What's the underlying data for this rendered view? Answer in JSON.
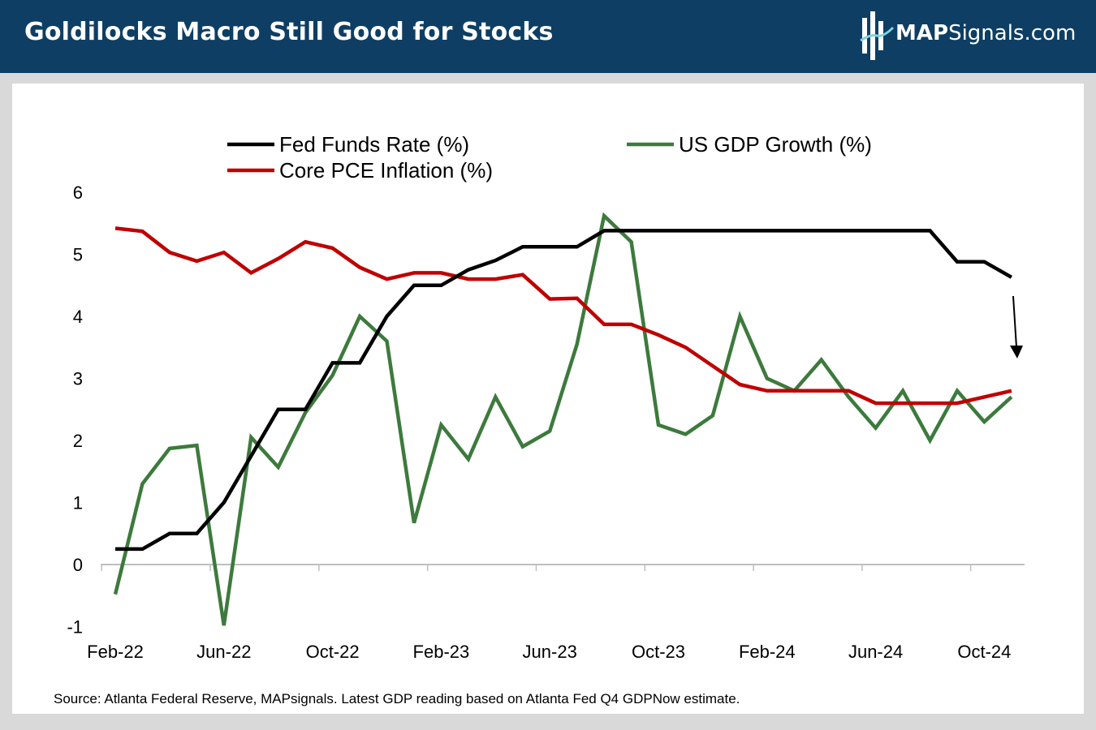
{
  "header": {
    "title": "Goldilocks Macro Still Good for Stocks",
    "logo_bold": "MAP",
    "logo_rest": "Signals.com",
    "colors": {
      "background": "#0e3e63",
      "text": "#ffffff"
    }
  },
  "footer": {
    "source": "Source: Atlanta Federal Reserve, MAPsignals. Latest GDP reading based on Atlanta Fed Q4 GDPNow estimate."
  },
  "chart_data": {
    "type": "line",
    "title": "",
    "xlabel": "",
    "ylabel": "",
    "ylim": [
      -1,
      6
    ],
    "yticks": [
      "-1",
      "0",
      "1",
      "2",
      "3",
      "4",
      "5",
      "6"
    ],
    "x": [
      "Feb-22",
      "Mar-22",
      "Apr-22",
      "May-22",
      "Jun-22",
      "Jul-22",
      "Aug-22",
      "Sep-22",
      "Oct-22",
      "Nov-22",
      "Dec-22",
      "Jan-23",
      "Feb-23",
      "Mar-23",
      "Apr-23",
      "May-23",
      "Jun-23",
      "Jul-23",
      "Aug-23",
      "Sep-23",
      "Oct-23",
      "Nov-23",
      "Dec-23",
      "Jan-24",
      "Feb-24",
      "Mar-24",
      "Apr-24",
      "May-24",
      "Jun-24",
      "Jul-24",
      "Aug-24",
      "Sep-24",
      "Oct-24",
      "Nov-24"
    ],
    "xtick_labels": [
      "Feb-22",
      "Jun-22",
      "Oct-22",
      "Feb-23",
      "Jun-23",
      "Oct-23",
      "Feb-24",
      "Jun-24",
      "Oct-24"
    ],
    "legend_position": "top",
    "series": [
      {
        "name": "Fed Funds Rate (%)",
        "color": "#000000",
        "values": [
          0.25,
          0.25,
          0.5,
          0.5,
          1.0,
          1.75,
          2.5,
          2.5,
          3.25,
          3.25,
          4.0,
          4.5,
          4.5,
          4.75,
          4.9,
          5.12,
          5.12,
          5.12,
          5.38,
          5.38,
          5.38,
          5.38,
          5.38,
          5.38,
          5.38,
          5.38,
          5.38,
          5.38,
          5.38,
          5.38,
          5.38,
          4.88,
          4.88,
          4.63
        ]
      },
      {
        "name": "US GDP Growth (%)",
        "color": "#3d7a3d",
        "values": [
          -0.48,
          1.3,
          1.87,
          1.92,
          -0.98,
          2.05,
          1.57,
          2.45,
          3.05,
          4.0,
          3.6,
          0.67,
          2.25,
          1.7,
          2.7,
          1.9,
          2.15,
          3.55,
          5.62,
          5.2,
          2.25,
          2.1,
          2.4,
          4.0,
          3.0,
          2.8,
          3.3,
          2.7,
          2.2,
          2.8,
          2.0,
          2.8,
          2.3,
          2.7
        ]
      },
      {
        "name": "Core PCE Inflation (%)",
        "color": "#c00000",
        "values": [
          5.42,
          5.37,
          5.03,
          4.89,
          5.03,
          4.7,
          4.93,
          5.2,
          5.1,
          4.79,
          4.6,
          4.7,
          4.7,
          4.6,
          4.6,
          4.67,
          4.28,
          4.29,
          3.87,
          3.87,
          3.7,
          3.5,
          3.2,
          2.9,
          2.8,
          2.8,
          2.8,
          2.8,
          2.6,
          2.6,
          2.6,
          2.6,
          2.7,
          2.8
        ]
      }
    ],
    "annotations": [
      "down-arrow"
    ]
  }
}
